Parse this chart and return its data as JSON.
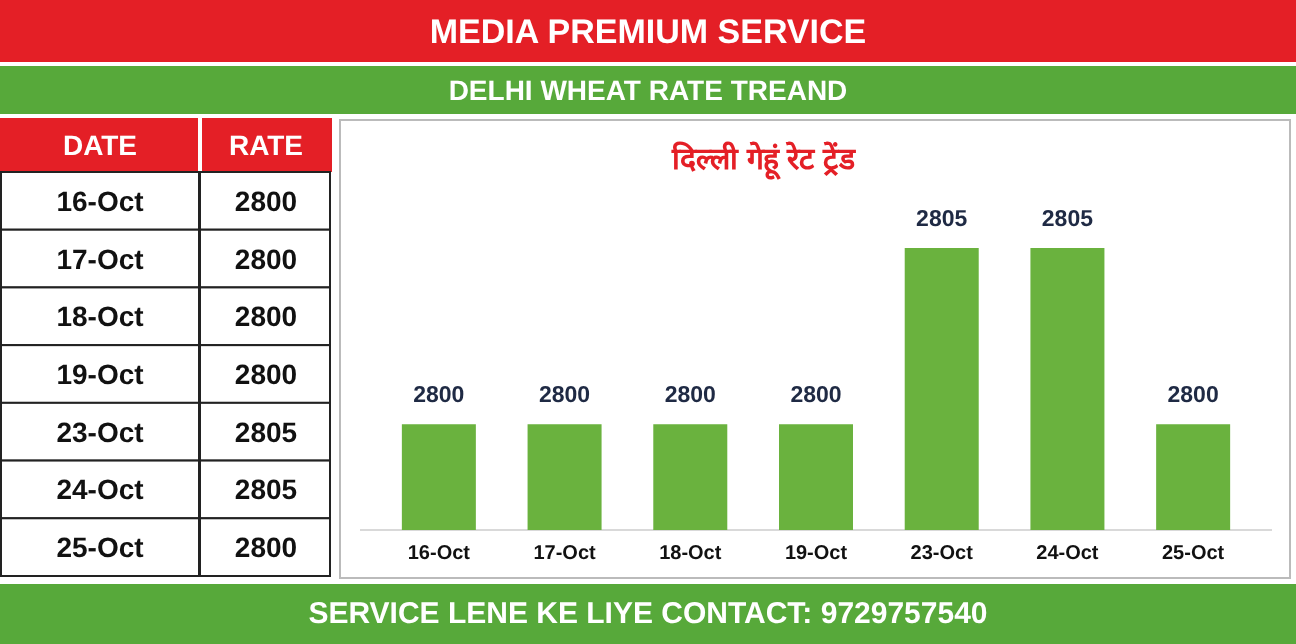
{
  "chart_data": {
    "type": "bar",
    "title": "MEDIA PREMIUM SERVICE",
    "subtitle": "DELHI WHEAT RATE TREAND",
    "categories": [
      "16-Oct",
      "17-Oct",
      "18-Oct",
      "19-Oct",
      "23-Oct",
      "24-Oct",
      "25-Oct"
    ],
    "values": [
      2800,
      2800,
      2800,
      2800,
      2805,
      2805,
      2800
    ],
    "value_labels": [
      "2800",
      "2800",
      "2800",
      "2800",
      "2805",
      "2805",
      "2800"
    ],
    "ylim": [
      2797,
      2805
    ],
    "color": "#6ab23e",
    "annotations": [
      "दिल्ली गेहूं रेट ट्रेंड",
      "SERVICE LENE KE LIYE CONTACT: 9729757540",
      "DATE",
      "RATE"
    ]
  }
}
